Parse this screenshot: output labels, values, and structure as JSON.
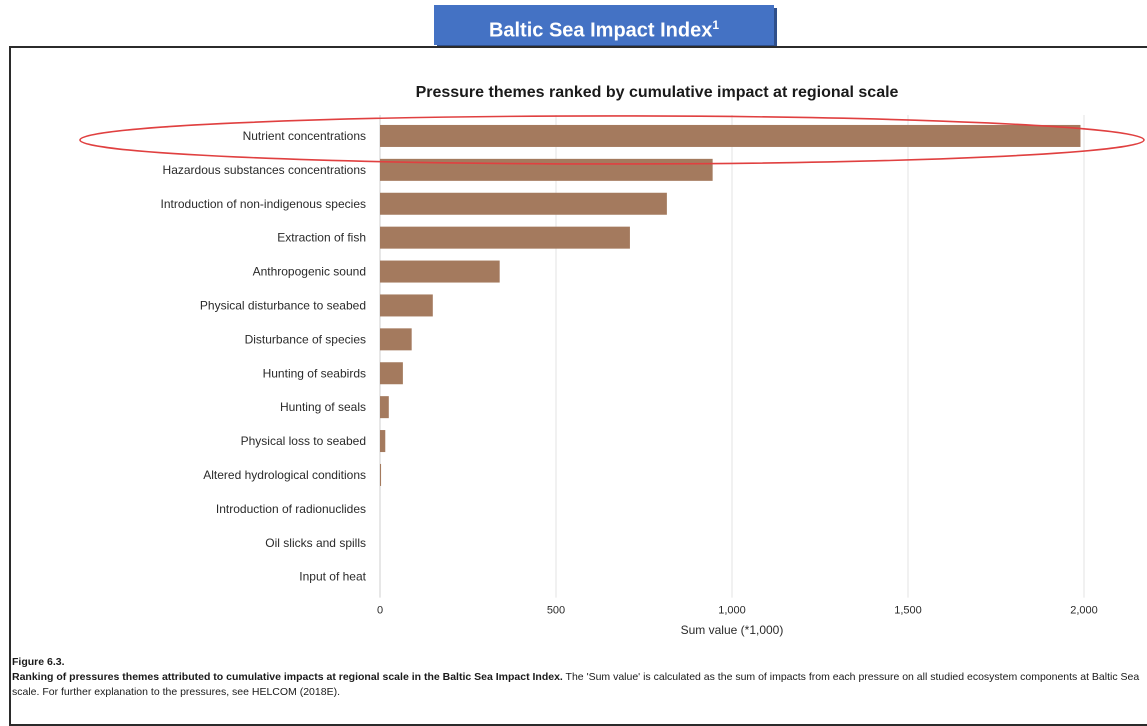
{
  "banner": {
    "title": "Baltic Sea Impact Index",
    "superscript": "1"
  },
  "chart_data": {
    "type": "bar",
    "orientation": "horizontal",
    "title": "Pressure themes ranked by cumulative impact at regional scale",
    "xlabel": "Sum value (*1,000)",
    "ylabel": "",
    "xlim": [
      0,
      2000
    ],
    "ticks": [
      0,
      500,
      1000,
      1500,
      2000
    ],
    "tick_labels": [
      "0",
      "500",
      "1,000",
      "1,500",
      "2,000"
    ],
    "grid": true,
    "bar_color": "#a47a5e",
    "highlight": {
      "category": "Nutrient concentrations",
      "shape": "ellipse",
      "color": "#e04040"
    },
    "categories": [
      "Nutrient concentrations",
      "Hazardous substances concentrations",
      "Introduction of non-indigenous species",
      "Extraction of fish",
      "Anthropogenic sound",
      "Physical disturbance to seabed",
      "Disturbance of species",
      "Hunting of seabirds",
      "Hunting of seals",
      "Physical loss to seabed",
      "Altered hydrological conditions",
      "Introduction of radionuclides",
      "Oil slicks and spills",
      "Input of heat"
    ],
    "values": [
      1990,
      945,
      815,
      710,
      340,
      150,
      90,
      65,
      25,
      15,
      3,
      0,
      0,
      0
    ]
  },
  "caption": {
    "figure_number": "Figure 6.3.",
    "bold_text": "Ranking of pressures themes attributed to cumulative impacts at regional scale in the Baltic Sea Impact Index.",
    "body_text": " The 'Sum value' is calculated as the sum of impacts from each pressure on all studied ecosystem components at Baltic Sea scale. For further explanation to the pressures, see HELCOM (2018E)."
  }
}
